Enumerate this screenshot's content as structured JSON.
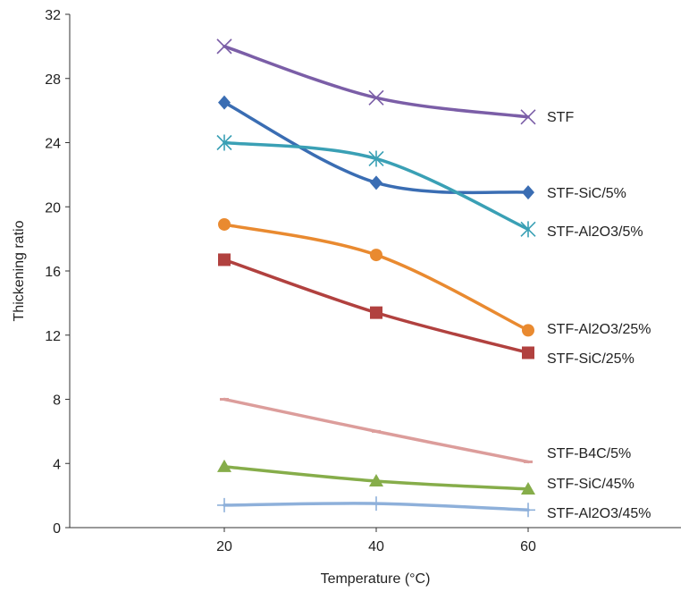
{
  "chart_data": {
    "type": "line",
    "title": "",
    "xlabel": "Temperature  (°C)",
    "ylabel": "Thickening  ratio",
    "xlim": [
      0,
      80
    ],
    "ylim": [
      0,
      32
    ],
    "x_ticks": [
      20,
      40,
      60
    ],
    "y_ticks": [
      0,
      4,
      8,
      12,
      16,
      20,
      24,
      28,
      32
    ],
    "grid": false,
    "x": [
      20,
      40,
      60
    ],
    "series": [
      {
        "name": "STF",
        "values": [
          30.0,
          26.8,
          25.6
        ],
        "color": "#7b5ea7",
        "marker": "x"
      },
      {
        "name": "STF-SiC/5%",
        "values": [
          26.5,
          21.5,
          20.9
        ],
        "color": "#3a6db3",
        "marker": "diamond"
      },
      {
        "name": "STF-Al2O3/5%",
        "values": [
          24.0,
          23.0,
          18.6
        ],
        "color": "#3aa0b5",
        "marker": "asterisk"
      },
      {
        "name": "STF-Al2O3/25%",
        "values": [
          18.9,
          17.0,
          12.3
        ],
        "color": "#e98a30",
        "marker": "circle"
      },
      {
        "name": "STF-SiC/25%",
        "values": [
          16.7,
          13.4,
          10.9
        ],
        "color": "#b1413f",
        "marker": "square"
      },
      {
        "name": "STF-B4C/5%",
        "values": [
          8.0,
          6.0,
          4.1
        ],
        "color": "#dc9d9b",
        "marker": "dash"
      },
      {
        "name": "STF-SiC/45%",
        "values": [
          3.8,
          2.9,
          2.4
        ],
        "color": "#86ad4a",
        "marker": "triangle"
      },
      {
        "name": "STF-Al2O3/45%",
        "values": [
          1.4,
          1.5,
          1.1
        ],
        "color": "#8eb0da",
        "marker": "plus"
      }
    ]
  }
}
